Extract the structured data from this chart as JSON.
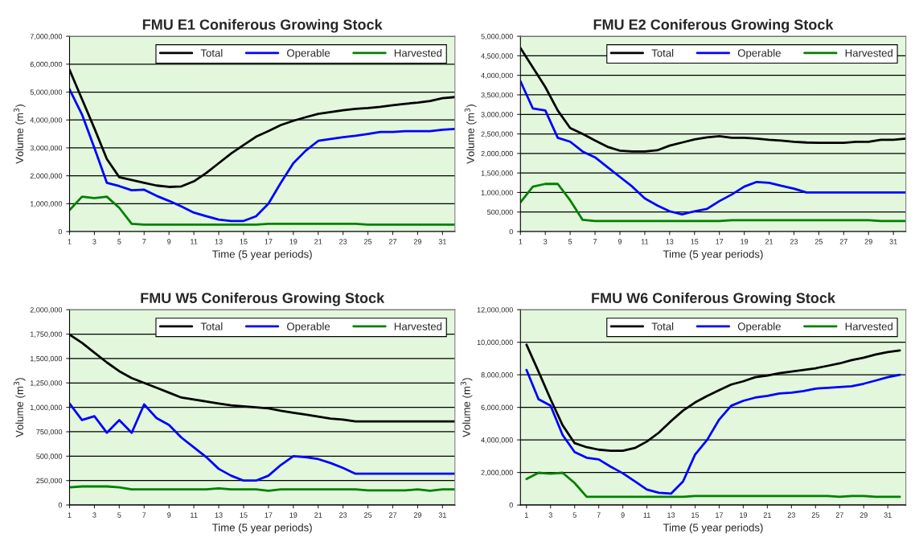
{
  "chart_data": [
    {
      "type": "line",
      "title": "FMU E1 Coniferous Growing Stock",
      "xlabel": "Time (5 year periods)",
      "ylabel": "Volume (m$^{3}$)",
      "x": [
        1,
        2,
        3,
        4,
        5,
        6,
        7,
        8,
        9,
        10,
        11,
        12,
        13,
        14,
        15,
        16,
        17,
        18,
        19,
        20,
        21,
        22,
        23,
        24,
        25,
        26,
        27,
        28,
        29,
        30,
        31,
        32
      ],
      "series": [
        {
          "name": "Total",
          "color": "#000000",
          "values": [
            5800000,
            4750000,
            3700000,
            2600000,
            1950000,
            1850000,
            1750000,
            1650000,
            1600000,
            1620000,
            1800000,
            2100000,
            2450000,
            2800000,
            3100000,
            3400000,
            3600000,
            3820000,
            3970000,
            4100000,
            4220000,
            4280000,
            4350000,
            4400000,
            4430000,
            4470000,
            4530000,
            4580000,
            4620000,
            4680000,
            4780000,
            4820000
          ]
        },
        {
          "name": "Operable",
          "color": "#0000ff",
          "values": [
            5100000,
            4200000,
            3000000,
            1750000,
            1630000,
            1480000,
            1500000,
            1280000,
            1100000,
            900000,
            680000,
            550000,
            430000,
            380000,
            380000,
            550000,
            1000000,
            1750000,
            2450000,
            2900000,
            3250000,
            3320000,
            3380000,
            3430000,
            3500000,
            3570000,
            3570000,
            3600000,
            3600000,
            3600000,
            3650000,
            3680000
          ]
        },
        {
          "name": "Harvested",
          "color": "#008000",
          "values": [
            770000,
            1250000,
            1200000,
            1250000,
            850000,
            280000,
            250000,
            250000,
            250000,
            250000,
            250000,
            250000,
            250000,
            250000,
            250000,
            250000,
            280000,
            280000,
            280000,
            280000,
            280000,
            280000,
            280000,
            280000,
            250000,
            250000,
            250000,
            250000,
            250000,
            250000,
            250000,
            250000
          ]
        }
      ],
      "xlim": [
        1,
        32
      ],
      "xticks": [
        1,
        3,
        5,
        7,
        9,
        11,
        13,
        15,
        17,
        19,
        21,
        23,
        25,
        27,
        29,
        31
      ],
      "ylim": [
        0,
        7000000
      ],
      "yticks": [
        {
          "value": 0,
          "label": "0"
        },
        {
          "value": 1000000,
          "label": "1,000,000"
        },
        {
          "value": 2000000,
          "label": "2,000,000"
        },
        {
          "value": 3000000,
          "label": "3,000,000"
        },
        {
          "value": 4000000,
          "label": "4,000,000"
        },
        {
          "value": 5000000,
          "label": "5,000,000"
        },
        {
          "value": 6000000,
          "label": "6,000,000"
        },
        {
          "value": 7000000,
          "label": "7,000,000"
        }
      ],
      "grid": "y",
      "legend": "top right"
    },
    {
      "type": "line",
      "title": "FMU E2 Coniferous Growing Stock",
      "xlabel": "Time (5 year periods)",
      "ylabel": "Volume (m$^{3}$)",
      "x": [
        1,
        2,
        3,
        4,
        5,
        6,
        7,
        8,
        9,
        10,
        11,
        12,
        13,
        14,
        15,
        16,
        17,
        18,
        19,
        20,
        21,
        22,
        23,
        24,
        25,
        26,
        27,
        28,
        29,
        30,
        31,
        32
      ],
      "series": [
        {
          "name": "Total",
          "color": "#000000",
          "values": [
            4700000,
            4200000,
            3700000,
            3100000,
            2650000,
            2500000,
            2330000,
            2170000,
            2070000,
            2050000,
            2050000,
            2080000,
            2200000,
            2280000,
            2360000,
            2410000,
            2440000,
            2400000,
            2400000,
            2380000,
            2350000,
            2330000,
            2300000,
            2280000,
            2270000,
            2270000,
            2270000,
            2300000,
            2300000,
            2350000,
            2350000,
            2380000
          ]
        },
        {
          "name": "Operable",
          "color": "#0000ff",
          "values": [
            3850000,
            3150000,
            3100000,
            2400000,
            2300000,
            2050000,
            1900000,
            1650000,
            1400000,
            1150000,
            850000,
            670000,
            520000,
            440000,
            520000,
            580000,
            780000,
            950000,
            1150000,
            1270000,
            1250000,
            1170000,
            1100000,
            1000000,
            1000000,
            1000000,
            1000000,
            1000000,
            1000000,
            1000000,
            1000000,
            1000000
          ]
        },
        {
          "name": "Harvested",
          "color": "#008000",
          "values": [
            750000,
            1150000,
            1220000,
            1220000,
            800000,
            300000,
            270000,
            270000,
            270000,
            270000,
            270000,
            270000,
            270000,
            270000,
            270000,
            270000,
            270000,
            290000,
            290000,
            290000,
            290000,
            290000,
            290000,
            290000,
            290000,
            290000,
            290000,
            290000,
            290000,
            270000,
            270000,
            270000
          ]
        }
      ],
      "xlim": [
        1,
        32
      ],
      "xticks": [
        1,
        3,
        5,
        7,
        9,
        11,
        13,
        15,
        17,
        19,
        21,
        23,
        25,
        27,
        29,
        31
      ],
      "ylim": [
        0,
        5000000
      ],
      "yticks": [
        {
          "value": 0,
          "label": "0"
        },
        {
          "value": 500000,
          "label": "500,000"
        },
        {
          "value": 1000000,
          "label": "1,000,000"
        },
        {
          "value": 1500000,
          "label": "1,500,000"
        },
        {
          "value": 2000000,
          "label": "2,000,000"
        },
        {
          "value": 2500000,
          "label": "2,500,000"
        },
        {
          "value": 3000000,
          "label": "3,000,000"
        },
        {
          "value": 3500000,
          "label": "3,500,000"
        },
        {
          "value": 4000000,
          "label": "4,000,000"
        },
        {
          "value": 4500000,
          "label": "4,500,000"
        },
        {
          "value": 5000000,
          "label": "5,000,000"
        }
      ],
      "grid": "y",
      "legend": "top right"
    },
    {
      "type": "line",
      "title": "FMU W5 Coniferous Growing Stock",
      "xlabel": "Time (5 year periods)",
      "ylabel": "Volume (m$^{3}$)",
      "x": [
        1,
        2,
        3,
        4,
        5,
        6,
        7,
        8,
        9,
        10,
        11,
        12,
        13,
        14,
        15,
        16,
        17,
        18,
        19,
        20,
        21,
        22,
        23,
        24,
        25,
        26,
        27,
        28,
        29,
        30,
        31,
        32
      ],
      "series": [
        {
          "name": "Total",
          "color": "#000000",
          "values": [
            1745000,
            1660000,
            1560000,
            1460000,
            1370000,
            1300000,
            1250000,
            1200000,
            1150000,
            1100000,
            1080000,
            1060000,
            1040000,
            1020000,
            1010000,
            1000000,
            990000,
            965000,
            945000,
            925000,
            905000,
            885000,
            875000,
            855000,
            855000,
            855000,
            855000,
            855000,
            855000,
            855000,
            855000,
            855000
          ]
        },
        {
          "name": "Operable",
          "color": "#0000ff",
          "values": [
            1040000,
            870000,
            910000,
            740000,
            870000,
            740000,
            1030000,
            890000,
            820000,
            690000,
            590000,
            490000,
            370000,
            300000,
            250000,
            250000,
            300000,
            410000,
            500000,
            490000,
            470000,
            430000,
            380000,
            320000,
            320000,
            320000,
            320000,
            320000,
            320000,
            320000,
            320000,
            320000
          ]
        },
        {
          "name": "Harvested",
          "color": "#008000",
          "values": [
            180000,
            190000,
            190000,
            190000,
            180000,
            160000,
            160000,
            160000,
            160000,
            160000,
            160000,
            160000,
            170000,
            160000,
            160000,
            160000,
            145000,
            160000,
            160000,
            160000,
            160000,
            160000,
            160000,
            160000,
            150000,
            150000,
            150000,
            150000,
            160000,
            145000,
            160000,
            160000
          ]
        }
      ],
      "xlim": [
        1,
        32
      ],
      "xticks": [
        1,
        3,
        5,
        7,
        9,
        11,
        13,
        15,
        17,
        19,
        21,
        23,
        25,
        27,
        29,
        31
      ],
      "ylim": [
        0,
        2000000
      ],
      "yticks": [
        {
          "value": 0,
          "label": "0"
        },
        {
          "value": 250000,
          "label": "250,000"
        },
        {
          "value": 500000,
          "label": "500,000"
        },
        {
          "value": 750000,
          "label": "750,000"
        },
        {
          "value": 1000000,
          "label": "1,000,000"
        },
        {
          "value": 1250000,
          "label": "1,250,000"
        },
        {
          "value": 1500000,
          "label": "1,500,000"
        },
        {
          "value": 1750000,
          "label": "1,750,000"
        },
        {
          "value": 2000000,
          "label": "2,000,000"
        }
      ],
      "grid": "y",
      "legend": "top right"
    },
    {
      "type": "line",
      "title": "FMU W6 Coniferous Growing Stock",
      "xlabel": "Time (5 year periods)",
      "ylabel": "Volume (m$^{3}$)",
      "x": [
        1,
        2,
        3,
        4,
        5,
        6,
        7,
        8,
        9,
        10,
        11,
        12,
        13,
        14,
        15,
        16,
        17,
        18,
        19,
        20,
        21,
        22,
        23,
        24,
        25,
        26,
        27,
        28,
        29,
        30,
        31,
        32
      ],
      "series": [
        {
          "name": "Total",
          "color": "#000000",
          "values": [
            9850000,
            8200000,
            6500000,
            4900000,
            3800000,
            3550000,
            3400000,
            3330000,
            3330000,
            3500000,
            3900000,
            4450000,
            5150000,
            5800000,
            6300000,
            6700000,
            7050000,
            7400000,
            7600000,
            7850000,
            7950000,
            8100000,
            8200000,
            8300000,
            8400000,
            8550000,
            8700000,
            8900000,
            9050000,
            9250000,
            9400000,
            9500000
          ]
        },
        {
          "name": "Operable",
          "color": "#0000ff",
          "values": [
            8300000,
            6500000,
            6100000,
            4300000,
            3250000,
            2900000,
            2800000,
            2350000,
            1950000,
            1450000,
            950000,
            750000,
            700000,
            1450000,
            3100000,
            4000000,
            5250000,
            6100000,
            6400000,
            6600000,
            6700000,
            6850000,
            6900000,
            7000000,
            7150000,
            7200000,
            7250000,
            7300000,
            7450000,
            7650000,
            7850000,
            8000000
          ]
        },
        {
          "name": "Harvested",
          "color": "#008000",
          "values": [
            1600000,
            1980000,
            1920000,
            1980000,
            1350000,
            500000,
            500000,
            500000,
            500000,
            500000,
            500000,
            500000,
            500000,
            500000,
            550000,
            550000,
            550000,
            550000,
            550000,
            550000,
            550000,
            550000,
            550000,
            550000,
            550000,
            550000,
            500000,
            550000,
            550000,
            500000,
            500000,
            500000
          ]
        }
      ],
      "xlim": [
        0.5,
        32.5
      ],
      "xticks": [
        1,
        3,
        5,
        7,
        9,
        11,
        13,
        15,
        17,
        19,
        21,
        23,
        25,
        27,
        29,
        31
      ],
      "ylim": [
        0,
        12000000
      ],
      "yticks": [
        {
          "value": 0,
          "label": "0"
        },
        {
          "value": 2000000,
          "label": "2,000,000"
        },
        {
          "value": 4000000,
          "label": "4,000,000"
        },
        {
          "value": 6000000,
          "label": "6,000,000"
        },
        {
          "value": 8000000,
          "label": "8,000,000"
        },
        {
          "value": 10000000,
          "label": "10,000,000"
        },
        {
          "value": 12000000,
          "label": "12,000,000"
        }
      ],
      "grid": "y",
      "legend": "top right"
    }
  ]
}
